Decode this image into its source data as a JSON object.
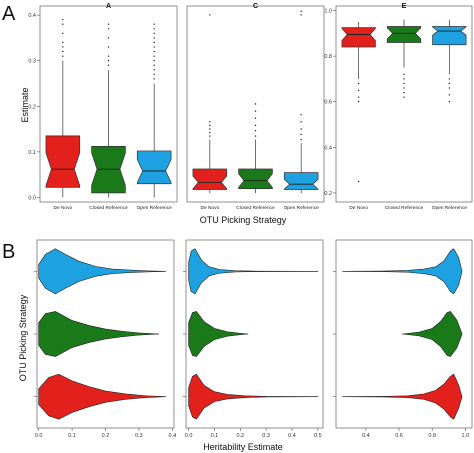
{
  "panel_labels": [
    "A",
    "B"
  ],
  "colors": {
    "de_novo": "#e2201c",
    "closed_reference": "#1a7a1a",
    "open_reference": "#1ea1e0"
  },
  "chart_data": [
    {
      "type": "box",
      "panel": "A",
      "title": "A",
      "categories": [
        "De Novo",
        "Closed Reference",
        "Open Reference"
      ],
      "ylabel": "Estimate",
      "xlabel": "OTU Picking Strategy",
      "ylim": [
        -0.01,
        0.42
      ],
      "yticks": [
        0.0,
        0.1,
        0.2,
        0.3,
        0.4
      ],
      "ytick_labels": [
        "0.0",
        "0.1",
        "0.2",
        "0.3",
        "0.4"
      ],
      "notched": true,
      "boxes": [
        {
          "name": "De Novo",
          "whisker_low": 0.0,
          "q1": 0.022,
          "median": 0.062,
          "q3": 0.135,
          "whisker_high": 0.3,
          "outliers": [
            0.31,
            0.32,
            0.33,
            0.34,
            0.36,
            0.38,
            0.39
          ]
        },
        {
          "name": "Closed Reference",
          "whisker_low": 0.0,
          "q1": 0.01,
          "median": 0.062,
          "q3": 0.112,
          "whisker_high": 0.28,
          "outliers": [
            0.29,
            0.3,
            0.31,
            0.33,
            0.35,
            0.37,
            0.38
          ]
        },
        {
          "name": "Open Reference",
          "whisker_low": 0.0,
          "q1": 0.03,
          "median": 0.058,
          "q3": 0.102,
          "whisker_high": 0.25,
          "outliers": [
            0.26,
            0.27,
            0.28,
            0.29,
            0.3,
            0.31,
            0.32,
            0.33,
            0.34,
            0.35,
            0.36,
            0.37,
            0.38
          ]
        }
      ]
    },
    {
      "type": "box",
      "panel": "A",
      "title": "C",
      "categories": [
        "De Novo",
        "Closed Reference",
        "Open Reference"
      ],
      "ylim": [
        -0.05,
        1.05
      ],
      "yticks": [],
      "notched": true,
      "boxes": [
        {
          "name": "De Novo",
          "whisker_low": 0.0,
          "q1": 0.02,
          "median": 0.06,
          "q3": 0.135,
          "whisker_high": 0.3,
          "outliers": [
            0.32,
            0.34,
            0.36,
            0.38,
            0.4,
            1.0
          ]
        },
        {
          "name": "Closed Reference",
          "whisker_low": 0.0,
          "q1": 0.025,
          "median": 0.07,
          "q3": 0.135,
          "whisker_high": 0.3,
          "outliers": [
            0.32,
            0.35,
            0.38,
            0.42,
            0.46,
            0.5
          ]
        },
        {
          "name": "Open Reference",
          "whisker_low": 0.0,
          "q1": 0.02,
          "median": 0.05,
          "q3": 0.115,
          "whisker_high": 0.28,
          "outliers": [
            0.3,
            0.33,
            0.36,
            0.4,
            0.44,
            1.0,
            1.02
          ]
        }
      ]
    },
    {
      "type": "box",
      "panel": "A",
      "title": "E",
      "categories": [
        "De Novo",
        "Closed Reference",
        "Open Reference"
      ],
      "ylim": [
        0.16,
        1.02
      ],
      "yticks": [
        0.2,
        0.4,
        0.6,
        0.8,
        1.0
      ],
      "ytick_labels": [
        "0.2",
        "0.4",
        "0.6",
        "0.8",
        "1.0"
      ],
      "notched": true,
      "boxes": [
        {
          "name": "De Novo",
          "whisker_low": 0.7,
          "q1": 0.84,
          "median": 0.895,
          "q3": 0.925,
          "whisker_high": 0.95,
          "outliers": [
            0.6,
            0.62,
            0.65,
            0.68,
            0.25
          ]
        },
        {
          "name": "Closed Reference",
          "whisker_low": 0.75,
          "q1": 0.86,
          "median": 0.9,
          "q3": 0.93,
          "whisker_high": 0.96,
          "outliers": [
            0.62,
            0.64,
            0.66,
            0.68,
            0.7,
            0.72
          ]
        },
        {
          "name": "Open Reference",
          "whisker_low": 0.72,
          "q1": 0.85,
          "median": 0.91,
          "q3": 0.93,
          "whisker_high": 0.96,
          "outliers": [
            0.6,
            0.63,
            0.66,
            0.68,
            0.7
          ]
        }
      ]
    },
    {
      "type": "violin",
      "panel": "B",
      "categories": [
        "De Novo",
        "Closed Reference",
        "Open Reference"
      ],
      "ylabel": "OTU Picking Strategy",
      "xlabel": "Heritability Estimate",
      "xlim": [
        -0.005,
        0.405
      ],
      "xticks": [
        0.0,
        0.1,
        0.2,
        0.3,
        0.4
      ],
      "xtick_labels": [
        "0.0",
        "0.1",
        "0.2",
        "0.3",
        "0.4"
      ],
      "violins": [
        {
          "name": "Open Reference",
          "min": 0.0,
          "max": 0.38,
          "peak": 0.055,
          "density": [
            [
              0.0,
              0.3
            ],
            [
              0.02,
              0.75
            ],
            [
              0.05,
              1.0
            ],
            [
              0.08,
              0.75
            ],
            [
              0.12,
              0.45
            ],
            [
              0.17,
              0.22
            ],
            [
              0.22,
              0.1
            ],
            [
              0.28,
              0.05
            ],
            [
              0.33,
              0.02
            ],
            [
              0.38,
              0.0
            ]
          ]
        },
        {
          "name": "Closed Reference",
          "min": 0.0,
          "max": 0.36,
          "peak": 0.045,
          "density": [
            [
              0.0,
              0.5
            ],
            [
              0.02,
              0.9
            ],
            [
              0.05,
              1.0
            ],
            [
              0.1,
              0.6
            ],
            [
              0.15,
              0.38
            ],
            [
              0.2,
              0.22
            ],
            [
              0.25,
              0.12
            ],
            [
              0.3,
              0.05
            ],
            [
              0.36,
              0.0
            ]
          ]
        },
        {
          "name": "De Novo",
          "min": 0.0,
          "max": 0.38,
          "peak": 0.06,
          "density": [
            [
              0.0,
              0.35
            ],
            [
              0.03,
              0.85
            ],
            [
              0.06,
              1.0
            ],
            [
              0.1,
              0.7
            ],
            [
              0.15,
              0.45
            ],
            [
              0.2,
              0.25
            ],
            [
              0.26,
              0.12
            ],
            [
              0.32,
              0.04
            ],
            [
              0.38,
              0.0
            ]
          ]
        }
      ]
    },
    {
      "type": "violin",
      "panel": "B",
      "categories": [
        "De Novo",
        "Closed Reference",
        "Open Reference"
      ],
      "xlim": [
        -0.01,
        0.52
      ],
      "xticks": [
        0.0,
        0.1,
        0.2,
        0.3,
        0.4,
        0.5
      ],
      "xtick_labels": [
        "0.0",
        "0.1",
        "0.2",
        "0.3",
        "0.4",
        "0.5"
      ],
      "violins": [
        {
          "name": "Open Reference",
          "min": 0.0,
          "max": 0.5,
          "density": [
            [
              0.0,
              0.4
            ],
            [
              0.01,
              0.9
            ],
            [
              0.025,
              1.0
            ],
            [
              0.05,
              0.5
            ],
            [
              0.08,
              0.2
            ],
            [
              0.12,
              0.08
            ],
            [
              0.18,
              0.03
            ],
            [
              0.25,
              0.01
            ],
            [
              0.5,
              0.0
            ]
          ]
        },
        {
          "name": "Closed Reference",
          "min": 0.0,
          "max": 0.23,
          "density": [
            [
              0.0,
              0.5
            ],
            [
              0.015,
              0.95
            ],
            [
              0.03,
              1.0
            ],
            [
              0.06,
              0.55
            ],
            [
              0.1,
              0.25
            ],
            [
              0.15,
              0.1
            ],
            [
              0.2,
              0.03
            ],
            [
              0.23,
              0.0
            ]
          ]
        },
        {
          "name": "De Novo",
          "min": 0.0,
          "max": 0.5,
          "density": [
            [
              0.0,
              0.4
            ],
            [
              0.015,
              0.9
            ],
            [
              0.03,
              1.0
            ],
            [
              0.06,
              0.5
            ],
            [
              0.1,
              0.22
            ],
            [
              0.15,
              0.1
            ],
            [
              0.22,
              0.04
            ],
            [
              0.3,
              0.01
            ],
            [
              0.5,
              0.0
            ]
          ]
        }
      ]
    },
    {
      "type": "violin",
      "panel": "B",
      "categories": [
        "De Novo",
        "Closed Reference",
        "Open Reference"
      ],
      "xlim": [
        0.22,
        1.04
      ],
      "xticks": [
        0.4,
        0.6,
        0.8,
        1.0
      ],
      "xtick_labels": [
        "0.4",
        "0.6",
        "0.8",
        "1.0"
      ],
      "violins": [
        {
          "name": "Open Reference",
          "min": 0.26,
          "max": 0.98,
          "density": [
            [
              0.26,
              0.0
            ],
            [
              0.5,
              0.01
            ],
            [
              0.65,
              0.04
            ],
            [
              0.75,
              0.1
            ],
            [
              0.82,
              0.2
            ],
            [
              0.87,
              0.45
            ],
            [
              0.91,
              0.9
            ],
            [
              0.93,
              1.0
            ],
            [
              0.96,
              0.6
            ],
            [
              0.98,
              0.0
            ]
          ]
        },
        {
          "name": "Closed Reference",
          "min": 0.62,
          "max": 0.98,
          "density": [
            [
              0.62,
              0.0
            ],
            [
              0.72,
              0.08
            ],
            [
              0.8,
              0.25
            ],
            [
              0.85,
              0.55
            ],
            [
              0.89,
              0.95
            ],
            [
              0.91,
              1.0
            ],
            [
              0.95,
              0.6
            ],
            [
              0.98,
              0.0
            ]
          ]
        },
        {
          "name": "De Novo",
          "min": 0.26,
          "max": 0.98,
          "density": [
            [
              0.26,
              0.0
            ],
            [
              0.5,
              0.01
            ],
            [
              0.65,
              0.04
            ],
            [
              0.75,
              0.12
            ],
            [
              0.82,
              0.28
            ],
            [
              0.87,
              0.55
            ],
            [
              0.91,
              0.9
            ],
            [
              0.93,
              1.0
            ],
            [
              0.96,
              0.5
            ],
            [
              0.98,
              0.0
            ]
          ]
        }
      ]
    }
  ]
}
